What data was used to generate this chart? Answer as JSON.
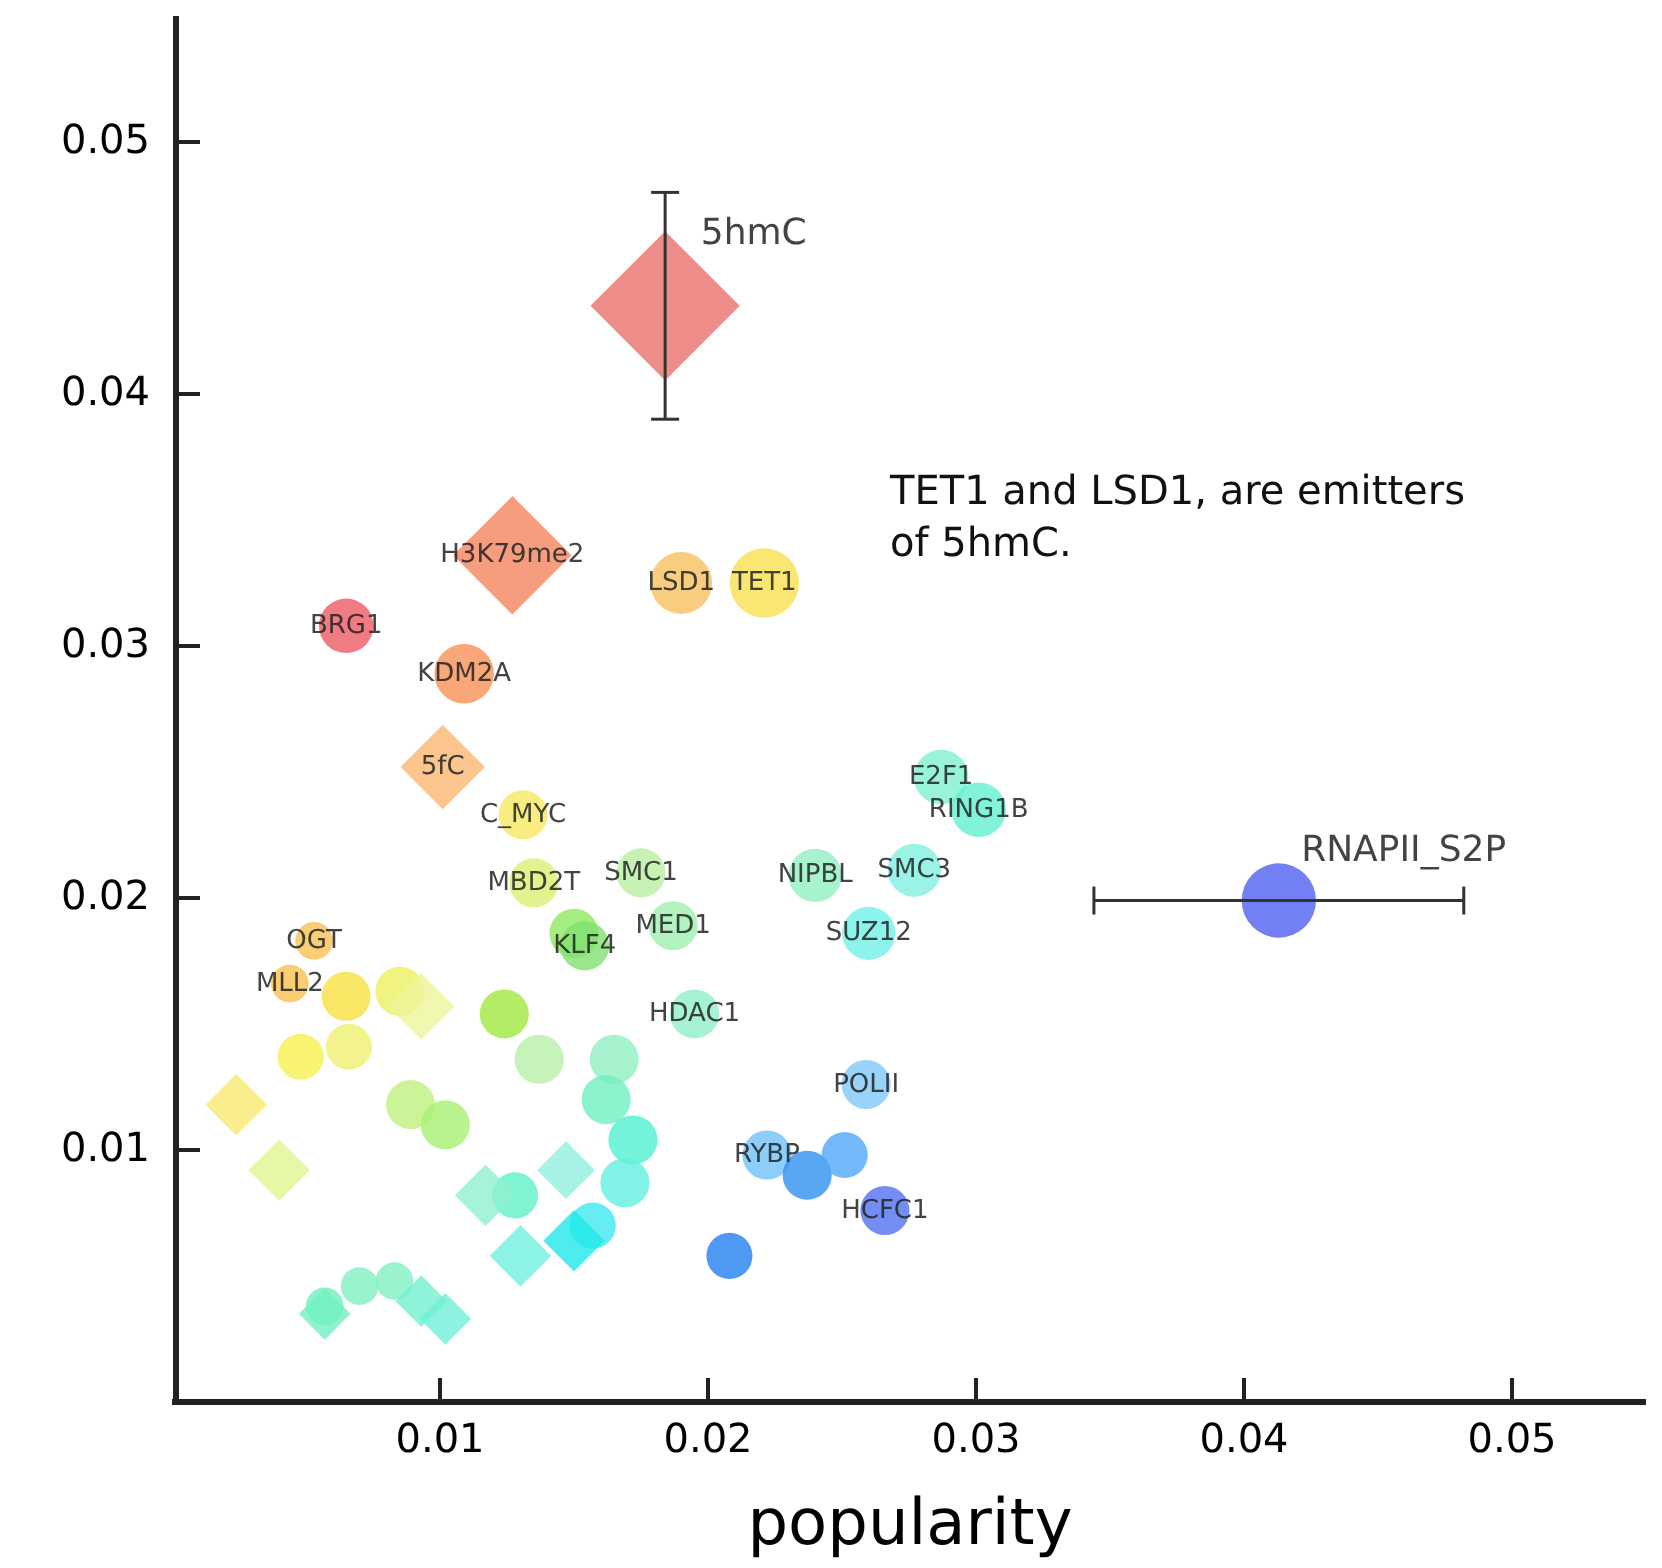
{
  "chart_data": {
    "type": "bubble",
    "xlabel": "popularity",
    "xlim": [
      0,
      0.055
    ],
    "ylim": [
      0,
      0.055
    ],
    "xticks": [
      0.01,
      0.02,
      0.03,
      0.04,
      0.05
    ],
    "yticks": [
      0.01,
      0.02,
      0.03,
      0.04,
      0.05
    ],
    "grid": false,
    "series": [
      {
        "marker": "circle",
        "x": [
          0.0065,
          0.0109,
          0.019,
          0.0221,
          0.0131,
          0.0135,
          0.0175,
          0.0187,
          0.015,
          0.0154,
          0.0053,
          0.0044,
          0.0065,
          0.0085,
          0.0048,
          0.0066,
          0.0089,
          0.0102,
          0.0124,
          0.0137,
          0.0165,
          0.0162,
          0.0172,
          0.0169,
          0.0128,
          0.0157,
          0.0057,
          0.007,
          0.0083,
          0.0195,
          0.0287,
          0.0301,
          0.024,
          0.0277,
          0.026,
          0.0259,
          0.0222,
          0.0237,
          0.0251,
          0.0266,
          0.0208,
          0.0413
        ],
        "values": [
          0.0308,
          0.0289,
          0.0325,
          0.0325,
          0.0233,
          0.0206,
          0.021,
          0.0189,
          0.0186,
          0.0181,
          0.0183,
          0.0166,
          0.0161,
          0.0163,
          0.0137,
          0.0141,
          0.0118,
          0.011,
          0.0154,
          0.0136,
          0.0136,
          0.012,
          0.0104,
          0.0087,
          0.0082,
          0.007,
          0.0038,
          0.0046,
          0.0048,
          0.0154,
          0.0248,
          0.0235,
          0.0209,
          0.0211,
          0.0186,
          0.0126,
          0.0098,
          0.009,
          0.0098,
          0.0076,
          0.0058,
          0.0199
        ],
        "sizes": [
          0.21,
          0.25,
          0.27,
          0.34,
          0.17,
          0.17,
          0.17,
          0.17,
          0.17,
          0.17,
          0.1,
          0.1,
          0.17,
          0.17,
          0.15,
          0.15,
          0.17,
          0.17,
          0.17,
          0.17,
          0.17,
          0.17,
          0.17,
          0.17,
          0.15,
          0.15,
          0.1,
          0.1,
          0.1,
          0.17,
          0.21,
          0.21,
          0.2,
          0.2,
          0.2,
          0.17,
          0.17,
          0.17,
          0.15,
          0.17,
          0.15,
          0.39
        ],
        "colors": [
          "#ee5a64",
          "#f89058",
          "#f8c060",
          "#f8e050",
          "#f5e860",
          "#d8f070",
          "#b8f0a0",
          "#a0f0b0",
          "#90e860",
          "#80e070",
          "#f8c050",
          "#f8c050",
          "#f8e040",
          "#eef060",
          "#f5f050",
          "#f0f070",
          "#c0f080",
          "#a8f070",
          "#a0e840",
          "#b8f0a8",
          "#90f0c0",
          "#70f0c0",
          "#50f0d0",
          "#60f0e0",
          "#60f0c8",
          "#40e8f0",
          "#70f0b8",
          "#80f0c0",
          "#80f0c0",
          "#90f0c8",
          "#80f0d0",
          "#60f0d0",
          "#90f0c0",
          "#80f0e0",
          "#70f0e8",
          "#80c8f8",
          "#70c0f8",
          "#3090f0",
          "#50a8f8",
          "#5070f0",
          "#2080f0",
          "#5060f0"
        ],
        "xerrors": [
          null,
          null,
          null,
          null,
          null,
          null,
          null,
          null,
          null,
          null,
          null,
          null,
          null,
          null,
          null,
          null,
          null,
          null,
          null,
          null,
          null,
          null,
          null,
          null,
          null,
          null,
          null,
          null,
          null,
          null,
          null,
          null,
          null,
          null,
          null,
          null,
          null,
          null,
          null,
          null,
          null,
          0.0069
        ]
      },
      {
        "marker": "diamond",
        "x": [
          0.0184,
          0.0127,
          0.0101,
          0.0093,
          0.0024,
          0.004,
          0.0117,
          0.0147,
          0.013,
          0.015,
          0.0093,
          0.0102,
          0.0057
        ],
        "values": [
          0.0435,
          0.0336,
          0.0252,
          0.0157,
          0.0118,
          0.0092,
          0.0082,
          0.0092,
          0.0058,
          0.0064,
          0.004,
          0.0033,
          0.0035
        ],
        "sizes": [
          1,
          0.63,
          0.32,
          0.2,
          0.17,
          0.17,
          0.17,
          0.15,
          0.17,
          0.17,
          0.12,
          0.12,
          0.12
        ],
        "colors": [
          "#e8706a",
          "#f4845f",
          "#f9b870",
          "#eef59a",
          "#f9e870",
          "#e0f590",
          "#90f0d0",
          "#90f0e0",
          "#70f0e0",
          "#20e8e8",
          "#70f0d0",
          "#70f0d8",
          "#70f0c0"
        ],
        "errors": [
          0.0045,
          null,
          null,
          null,
          null,
          null,
          null,
          null,
          null,
          null,
          null,
          null,
          null
        ]
      }
    ],
    "annotations": [
      {
        "text": "5hmC",
        "x": 0.0184,
        "y": 0.0435
      },
      {
        "text": "H3K79me2",
        "x": 0.0127,
        "y": 0.0336
      },
      {
        "text": "LSD1",
        "x": 0.019,
        "y": 0.0325
      },
      {
        "text": "TET1",
        "x": 0.0221,
        "y": 0.0325
      },
      {
        "text": "BRG1",
        "x": 0.0065,
        "y": 0.0308
      },
      {
        "text": "KDM2A",
        "x": 0.0109,
        "y": 0.0289
      },
      {
        "text": "5fC",
        "x": 0.0101,
        "y": 0.0252
      },
      {
        "text": "C_MYC",
        "x": 0.0131,
        "y": 0.0233
      },
      {
        "text": "MBD2T",
        "x": 0.0135,
        "y": 0.0206
      },
      {
        "text": "SMC1",
        "x": 0.0175,
        "y": 0.021
      },
      {
        "text": "MED1",
        "x": 0.0187,
        "y": 0.0189
      },
      {
        "text": "KLF4",
        "x": 0.0154,
        "y": 0.0181
      },
      {
        "text": "OGT",
        "x": 0.0053,
        "y": 0.0183
      },
      {
        "text": "MLL2",
        "x": 0.0044,
        "y": 0.0166
      },
      {
        "text": "HDAC1",
        "x": 0.0195,
        "y": 0.0154
      },
      {
        "text": "E2F1",
        "x": 0.0287,
        "y": 0.0248
      },
      {
        "text": "RING1B",
        "x": 0.0301,
        "y": 0.0235
      },
      {
        "text": "NIPBL",
        "x": 0.024,
        "y": 0.0209
      },
      {
        "text": "SMC3",
        "x": 0.0277,
        "y": 0.0211
      },
      {
        "text": "SUZ12",
        "x": 0.026,
        "y": 0.0186
      },
      {
        "text": "POLII",
        "x": 0.0259,
        "y": 0.0126
      },
      {
        "text": "RYBP",
        "x": 0.0222,
        "y": 0.0098
      },
      {
        "text": "HCFC1",
        "x": 0.0266,
        "y": 0.0076
      },
      {
        "text": "RNAPII_S2P",
        "x": 0.0413,
        "y": 0.0199
      },
      "TET1 and LSD1, are emitters of 5hmC."
    ]
  }
}
